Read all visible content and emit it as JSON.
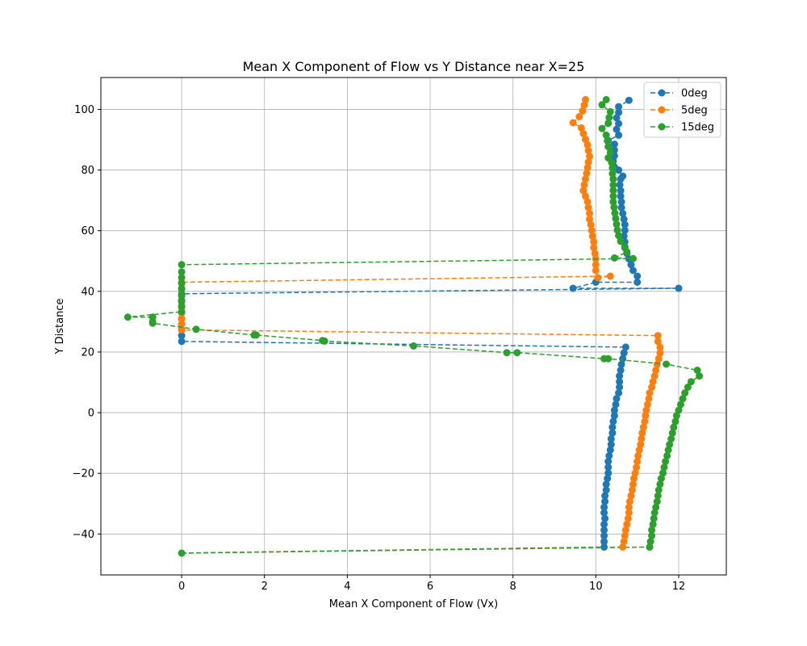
{
  "chart_data": {
    "type": "line",
    "title": "Mean X Component of Flow vs Y Distance near X=25",
    "xlabel": "Mean X Component of Flow (Vx)",
    "ylabel": "Y Distance",
    "xlim": [
      -1.95,
      13.15
    ],
    "ylim": [
      -53.5,
      110.5
    ],
    "xticks": [
      0,
      2,
      4,
      6,
      8,
      10,
      12
    ],
    "yticks": [
      -40,
      -20,
      0,
      20,
      40,
      60,
      80,
      100
    ],
    "grid": true,
    "legend_position": "top-right",
    "line_style": "dashed",
    "marker": "circle",
    "series": [
      {
        "name": "0deg",
        "color": "#1f77b4",
        "points": [
          [
            10.2,
            -44.3
          ],
          [
            10.2,
            -42.5
          ],
          [
            10.2,
            -40.6
          ],
          [
            10.2,
            -38.7
          ],
          [
            10.2,
            -36.8
          ],
          [
            10.22,
            -34.9
          ],
          [
            10.2,
            -33.0
          ],
          [
            10.2,
            -31.2
          ],
          [
            10.22,
            -29.3
          ],
          [
            10.22,
            -27.4
          ],
          [
            10.25,
            -25.5
          ],
          [
            10.25,
            -23.6
          ],
          [
            10.28,
            -21.7
          ],
          [
            10.3,
            -19.9
          ],
          [
            10.3,
            -18.0
          ],
          [
            10.3,
            -16.1
          ],
          [
            10.32,
            -14.2
          ],
          [
            10.35,
            -12.3
          ],
          [
            10.37,
            -10.5
          ],
          [
            10.37,
            -8.6
          ],
          [
            10.4,
            -6.7
          ],
          [
            10.4,
            -4.8
          ],
          [
            10.42,
            -2.9
          ],
          [
            10.45,
            -1.0
          ],
          [
            10.45,
            0.8
          ],
          [
            10.48,
            2.7
          ],
          [
            10.5,
            4.6
          ],
          [
            10.55,
            6.5
          ],
          [
            10.57,
            8.4
          ],
          [
            10.57,
            10.2
          ],
          [
            10.57,
            12.1
          ],
          [
            10.6,
            14.0
          ],
          [
            10.62,
            15.9
          ],
          [
            10.65,
            17.8
          ],
          [
            10.68,
            19.7
          ],
          [
            10.72,
            21.6
          ],
          [
            0.0,
            23.5
          ],
          [
            0.0,
            25.4
          ],
          [
            0.0,
            27.3
          ],
          [
            0.0,
            29.2
          ],
          [
            0.0,
            31.0
          ],
          [
            0.0,
            32.9
          ],
          [
            0.0,
            34.8
          ],
          [
            0.0,
            36.7
          ],
          [
            0.0,
            38.6
          ],
          [
            0.0,
            39.2
          ],
          [
            12.0,
            41.0
          ],
          [
            9.45,
            41.0
          ],
          [
            10.0,
            43.0
          ],
          [
            11.0,
            43.0
          ],
          [
            11.0,
            45.0
          ],
          [
            10.9,
            46.9
          ],
          [
            10.85,
            48.8
          ],
          [
            10.8,
            50.7
          ],
          [
            10.75,
            52.5
          ],
          [
            10.7,
            54.4
          ],
          [
            10.7,
            56.3
          ],
          [
            10.68,
            58.2
          ],
          [
            10.7,
            60.1
          ],
          [
            10.7,
            62.0
          ],
          [
            10.68,
            63.8
          ],
          [
            10.65,
            65.7
          ],
          [
            10.62,
            67.6
          ],
          [
            10.62,
            69.5
          ],
          [
            10.6,
            71.4
          ],
          [
            10.6,
            73.2
          ],
          [
            10.58,
            75.1
          ],
          [
            10.6,
            77.0
          ],
          [
            10.65,
            78.0
          ],
          [
            10.55,
            80.0
          ],
          [
            10.45,
            81.0
          ],
          [
            10.42,
            82.9
          ],
          [
            10.45,
            84.7
          ],
          [
            10.45,
            86.6
          ],
          [
            10.45,
            88.5
          ],
          [
            10.3,
            89.7
          ],
          [
            10.55,
            91.5
          ],
          [
            10.5,
            93.4
          ],
          [
            10.55,
            95.3
          ],
          [
            10.5,
            97.2
          ],
          [
            10.55,
            99.0
          ],
          [
            10.55,
            100.9
          ],
          [
            10.8,
            103.0
          ]
        ]
      },
      {
        "name": "5deg",
        "color": "#ff7f0e",
        "points": [
          [
            10.65,
            -44.3
          ],
          [
            10.68,
            -42.5
          ],
          [
            10.7,
            -40.6
          ],
          [
            10.72,
            -38.7
          ],
          [
            10.75,
            -36.8
          ],
          [
            10.78,
            -34.9
          ],
          [
            10.8,
            -33.0
          ],
          [
            10.8,
            -31.2
          ],
          [
            10.82,
            -29.3
          ],
          [
            10.85,
            -27.4
          ],
          [
            10.88,
            -25.5
          ],
          [
            10.9,
            -23.6
          ],
          [
            10.92,
            -21.7
          ],
          [
            10.95,
            -19.9
          ],
          [
            10.98,
            -18.0
          ],
          [
            11.0,
            -16.1
          ],
          [
            11.02,
            -14.2
          ],
          [
            11.05,
            -12.3
          ],
          [
            11.08,
            -10.5
          ],
          [
            11.1,
            -8.6
          ],
          [
            11.12,
            -6.7
          ],
          [
            11.15,
            -4.8
          ],
          [
            11.18,
            -2.9
          ],
          [
            11.2,
            -1.0
          ],
          [
            11.22,
            0.8
          ],
          [
            11.25,
            2.7
          ],
          [
            11.28,
            4.6
          ],
          [
            11.3,
            6.5
          ],
          [
            11.35,
            8.4
          ],
          [
            11.38,
            10.2
          ],
          [
            11.42,
            12.1
          ],
          [
            11.45,
            14.0
          ],
          [
            11.48,
            15.9
          ],
          [
            11.52,
            17.8
          ],
          [
            11.55,
            19.7
          ],
          [
            11.55,
            21.6
          ],
          [
            11.5,
            23.5
          ],
          [
            11.5,
            25.4
          ],
          [
            0.0,
            27.3
          ],
          [
            0.0,
            29.2
          ],
          [
            0.0,
            31.0
          ],
          [
            0.0,
            33.0
          ],
          [
            0.0,
            35.0
          ],
          [
            0.0,
            37.0
          ],
          [
            0.0,
            39.0
          ],
          [
            0.0,
            41.0
          ],
          [
            0.0,
            43.0
          ],
          [
            10.35,
            45.0
          ],
          [
            10.05,
            44.5
          ],
          [
            10.0,
            46.9
          ],
          [
            10.0,
            48.8
          ],
          [
            10.0,
            50.7
          ],
          [
            9.98,
            52.5
          ],
          [
            9.95,
            54.4
          ],
          [
            9.95,
            56.3
          ],
          [
            9.92,
            58.2
          ],
          [
            9.9,
            60.1
          ],
          [
            9.88,
            62.0
          ],
          [
            9.85,
            63.8
          ],
          [
            9.85,
            65.7
          ],
          [
            9.82,
            67.6
          ],
          [
            9.8,
            69.5
          ],
          [
            9.75,
            71.4
          ],
          [
            9.7,
            73.2
          ],
          [
            9.72,
            75.1
          ],
          [
            9.75,
            77.0
          ],
          [
            9.78,
            78.9
          ],
          [
            9.8,
            80.8
          ],
          [
            9.82,
            82.6
          ],
          [
            9.85,
            84.5
          ],
          [
            9.82,
            86.4
          ],
          [
            9.8,
            88.3
          ],
          [
            9.75,
            90.1
          ],
          [
            9.7,
            92.0
          ],
          [
            9.65,
            93.9
          ],
          [
            9.45,
            95.6
          ],
          [
            9.6,
            97.6
          ],
          [
            9.68,
            99.5
          ],
          [
            9.72,
            101.4
          ],
          [
            9.75,
            103.2
          ]
        ]
      },
      {
        "name": "15deg",
        "color": "#2ca02c",
        "points": [
          [
            11.3,
            -44.3
          ],
          [
            11.32,
            -42.5
          ],
          [
            11.35,
            -40.6
          ],
          [
            11.35,
            -38.7
          ],
          [
            11.38,
            -36.8
          ],
          [
            11.4,
            -34.9
          ],
          [
            11.42,
            -33.0
          ],
          [
            11.45,
            -31.2
          ],
          [
            11.48,
            -29.3
          ],
          [
            11.5,
            -27.4
          ],
          [
            11.52,
            -25.5
          ],
          [
            11.55,
            -23.6
          ],
          [
            11.58,
            -21.7
          ],
          [
            11.62,
            -19.9
          ],
          [
            11.65,
            -18.0
          ],
          [
            11.68,
            -16.1
          ],
          [
            11.72,
            -14.2
          ],
          [
            11.75,
            -12.3
          ],
          [
            11.78,
            -10.5
          ],
          [
            11.82,
            -8.6
          ],
          [
            11.85,
            -6.7
          ],
          [
            11.88,
            -4.8
          ],
          [
            11.92,
            -2.9
          ],
          [
            11.95,
            -1.0
          ],
          [
            12.0,
            0.8
          ],
          [
            12.05,
            2.7
          ],
          [
            12.1,
            4.6
          ],
          [
            12.15,
            6.5
          ],
          [
            12.22,
            8.4
          ],
          [
            12.3,
            10.2
          ],
          [
            12.5,
            12.1
          ],
          [
            12.45,
            14.0
          ],
          [
            11.7,
            16.0
          ],
          [
            10.3,
            17.8
          ],
          [
            10.2,
            17.8
          ],
          [
            8.1,
            19.8
          ],
          [
            7.85,
            19.8
          ],
          [
            5.6,
            22.0
          ],
          [
            3.45,
            23.6
          ],
          [
            3.4,
            23.8
          ],
          [
            1.8,
            25.6
          ],
          [
            1.75,
            25.6
          ],
          [
            0.35,
            27.5
          ],
          [
            -0.7,
            29.5
          ],
          [
            -0.7,
            30.0
          ],
          [
            -0.7,
            31.5
          ],
          [
            -1.3,
            31.5
          ],
          [
            0.0,
            33.3
          ],
          [
            0.0,
            35.2
          ],
          [
            0.0,
            37.0
          ],
          [
            0.0,
            38.9
          ],
          [
            0.0,
            40.8
          ],
          [
            0.0,
            42.6
          ],
          [
            0.0,
            44.5
          ],
          [
            0.0,
            46.4
          ],
          [
            0.0,
            48.8
          ],
          [
            10.9,
            50.8
          ],
          [
            10.45,
            51.0
          ],
          [
            10.75,
            53.0
          ],
          [
            10.7,
            54.7
          ],
          [
            10.6,
            56.5
          ],
          [
            10.55,
            58.4
          ],
          [
            10.52,
            60.2
          ],
          [
            10.5,
            62.1
          ],
          [
            10.48,
            64.0
          ],
          [
            10.46,
            65.8
          ],
          [
            10.44,
            67.7
          ],
          [
            10.42,
            69.5
          ],
          [
            10.42,
            71.4
          ],
          [
            10.42,
            73.3
          ],
          [
            10.42,
            75.1
          ],
          [
            10.42,
            77.0
          ],
          [
            10.4,
            78.8
          ],
          [
            10.4,
            80.7
          ],
          [
            10.38,
            82.5
          ],
          [
            10.3,
            84.0
          ],
          [
            10.35,
            85.8
          ],
          [
            10.3,
            87.7
          ],
          [
            10.28,
            89.6
          ],
          [
            10.25,
            91.5
          ],
          [
            10.15,
            93.7
          ],
          [
            10.3,
            95.4
          ],
          [
            10.32,
            97.3
          ],
          [
            10.35,
            99.2
          ],
          [
            10.15,
            101.5
          ],
          [
            10.25,
            103.2
          ]
        ],
        "extra_points": [
          [
            0.0,
            -46.3
          ],
          [
            11.3,
            -44.3
          ]
        ]
      }
    ],
    "baseline_segments": [
      {
        "series": "0deg",
        "from": [
          0.0,
          -46.3
        ],
        "to": [
          10.2,
          -44.3
        ]
      },
      {
        "series": "5deg",
        "from": [
          0.0,
          -46.3
        ],
        "to": [
          10.65,
          -44.3
        ]
      },
      {
        "series": "15deg",
        "from": [
          0.0,
          -46.3
        ],
        "to": [
          11.3,
          -44.3
        ]
      }
    ]
  }
}
